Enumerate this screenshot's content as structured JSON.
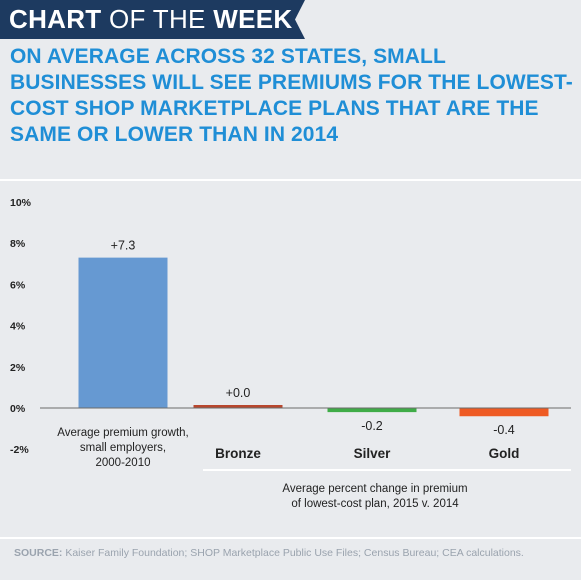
{
  "banner": {
    "part1": "CHART",
    "part2": "OF THE",
    "part3": "WEEK"
  },
  "headline": "ON AVERAGE ACROSS 32 STATES, SMALL BUSINESSES WILL SEE PREMIUMS FOR THE LOWEST-COST SHOP MARKETPLACE PLANS THAT ARE THE SAME OR LOWER THAN IN 2014",
  "source": {
    "label": "SOURCE:",
    "text": "Kaiser Family Foundation; SHOP Marketplace Public Use Files; Census Bureau; CEA calculations."
  },
  "colors": {
    "banner": "#1d3a60",
    "headline": "#1f8ed6",
    "background": "#e9ebee"
  },
  "chart_data": {
    "type": "bar",
    "title": "",
    "xlabel": "",
    "ylabel": "",
    "ylim": [
      -2,
      10
    ],
    "yticks": [
      -2,
      0,
      2,
      4,
      6,
      8,
      10
    ],
    "ytick_labels": [
      "-2%",
      "0%",
      "2%",
      "4%",
      "6%",
      "8%",
      "10%"
    ],
    "grid": false,
    "legend": "none",
    "bars": [
      {
        "label_lines": [
          "Average premium growth,",
          "small employers,",
          "2000-2010"
        ],
        "value": 7.3,
        "value_label": "+7.3",
        "color": "#6699d2",
        "bold_label": false
      },
      {
        "label_lines": [
          "Bronze"
        ],
        "value": 0.0,
        "value_label": "+0.0",
        "color": "#b8472e",
        "bold_label": true
      },
      {
        "label_lines": [
          "Silver"
        ],
        "value": -0.2,
        "value_label": "-0.2",
        "color": "#3fac47",
        "bold_label": true
      },
      {
        "label_lines": [
          "Gold"
        ],
        "value": -0.4,
        "value_label": "-0.4",
        "color": "#ee5a23",
        "bold_label": true
      }
    ],
    "group_annotation": [
      "Average percent change in premium",
      "of lowest-cost plan, 2015 v. 2014"
    ]
  }
}
